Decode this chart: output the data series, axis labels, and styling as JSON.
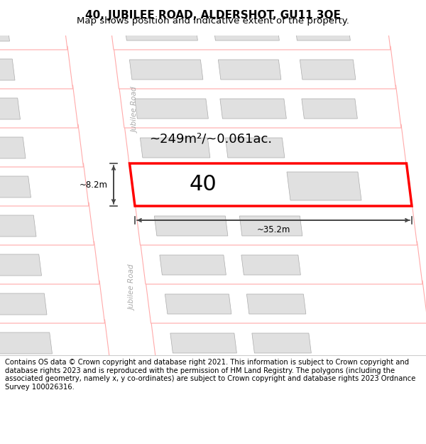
{
  "title": "40, JUBILEE ROAD, ALDERSHOT, GU11 3QE",
  "subtitle": "Map shows position and indicative extent of the property.",
  "footer": "Contains OS data © Crown copyright and database right 2021. This information is subject to Crown copyright and database rights 2023 and is reproduced with the permission of HM Land Registry. The polygons (including the associated geometry, namely x, y co-ordinates) are subject to Crown copyright and database rights 2023 Ordnance Survey 100026316.",
  "bg_color": "#ffffff",
  "building_fill": "#e0e0e0",
  "building_edge": "#aaaaaa",
  "plot_edge_color": "#ffaaaa",
  "plot_fill": "#ffffff",
  "road_fill": "#ffffff",
  "road_edge": "#cccccc",
  "dim_color": "#444444",
  "area_text": "~249m²/~0.061ac.",
  "plot_label": "40",
  "width_label": "~35.2m",
  "height_label": "~8.2m",
  "road_label": "Jubilee Road",
  "title_fontsize": 11,
  "subtitle_fontsize": 9.5,
  "footer_fontsize": 7.2
}
